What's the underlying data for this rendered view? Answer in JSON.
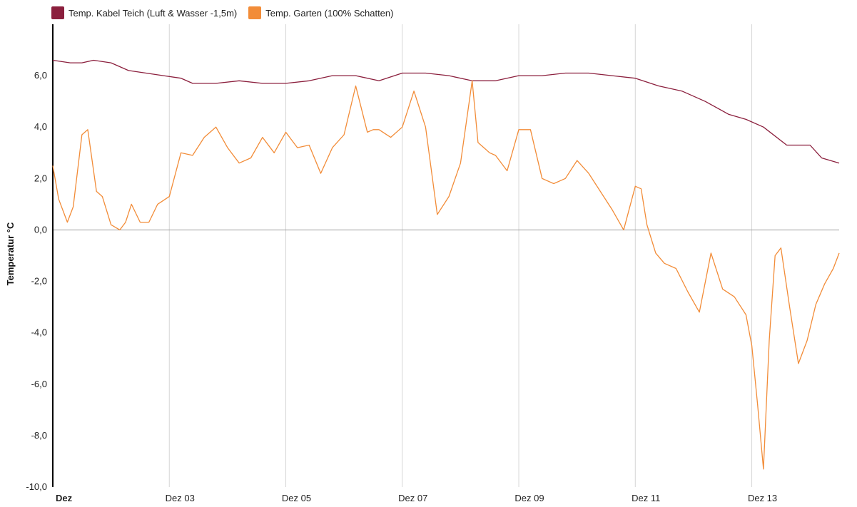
{
  "chart_data": {
    "type": "line",
    "ylabel": "Temperatur °C",
    "ylim": [
      -10,
      8
    ],
    "y_ticks": [
      "6,0",
      "4,0",
      "2,0",
      "0,0",
      "-2,0",
      "-4,0",
      "-6,0",
      "-8,0",
      "-10,0"
    ],
    "y_tick_values": [
      6,
      4,
      2,
      0,
      -2,
      -4,
      -6,
      -8,
      -10
    ],
    "x_ticks": [
      "Dez",
      "Dez 03",
      "Dez 05",
      "Dez 07",
      "Dez 09",
      "Dez 11",
      "Dez 13"
    ],
    "x_tick_values": [
      1,
      3,
      5,
      7,
      9,
      11,
      13
    ],
    "xlim": [
      1,
      14.5
    ],
    "grid": "vertical",
    "legend": "top-left",
    "series": [
      {
        "name": "Temp. Kabel Teich (Luft & Wasser -1,5m)",
        "color": "#8b1f3d",
        "x": [
          1.0,
          1.3,
          1.5,
          1.7,
          2.0,
          2.3,
          2.6,
          2.9,
          3.2,
          3.4,
          3.8,
          4.2,
          4.6,
          5.0,
          5.4,
          5.8,
          6.2,
          6.6,
          7.0,
          7.4,
          7.8,
          8.2,
          8.6,
          9.0,
          9.4,
          9.8,
          10.2,
          10.6,
          11.0,
          11.4,
          11.8,
          12.2,
          12.6,
          12.9,
          13.2,
          13.6,
          14.0,
          14.2,
          14.5
        ],
        "y": [
          6.6,
          6.5,
          6.5,
          6.6,
          6.5,
          6.2,
          6.1,
          6.0,
          5.9,
          5.7,
          5.7,
          5.8,
          5.7,
          5.7,
          5.8,
          6.0,
          6.0,
          5.8,
          6.1,
          6.1,
          6.0,
          5.8,
          5.8,
          6.0,
          6.0,
          6.1,
          6.1,
          6.0,
          5.9,
          5.6,
          5.4,
          5.0,
          4.5,
          4.3,
          4.0,
          3.3,
          3.3,
          2.8,
          2.6
        ]
      },
      {
        "name": "Temp. Garten (100% Schatten)",
        "color": "#f28c38",
        "x": [
          1.0,
          1.1,
          1.25,
          1.35,
          1.5,
          1.6,
          1.75,
          1.85,
          2.0,
          2.15,
          2.25,
          2.35,
          2.5,
          2.65,
          2.8,
          3.0,
          3.2,
          3.4,
          3.6,
          3.8,
          4.0,
          4.2,
          4.4,
          4.6,
          4.8,
          5.0,
          5.2,
          5.4,
          5.6,
          5.8,
          6.0,
          6.2,
          6.4,
          6.5,
          6.6,
          6.8,
          7.0,
          7.2,
          7.4,
          7.6,
          7.8,
          8.0,
          8.2,
          8.3,
          8.4,
          8.5,
          8.6,
          8.8,
          9.0,
          9.2,
          9.4,
          9.6,
          9.8,
          10.0,
          10.2,
          10.4,
          10.6,
          10.8,
          11.0,
          11.1,
          11.2,
          11.35,
          11.5,
          11.7,
          11.9,
          12.1,
          12.3,
          12.5,
          12.7,
          12.9,
          13.0,
          13.1,
          13.2,
          13.3,
          13.4,
          13.5,
          13.65,
          13.8,
          13.95,
          14.1,
          14.25,
          14.4,
          14.5
        ],
        "y": [
          2.5,
          1.2,
          0.3,
          0.9,
          3.7,
          3.9,
          1.5,
          1.3,
          0.2,
          0.0,
          0.3,
          1.0,
          0.3,
          0.3,
          1.0,
          1.3,
          3.0,
          2.9,
          3.6,
          4.0,
          3.2,
          2.6,
          2.8,
          3.6,
          3.0,
          3.8,
          3.2,
          3.3,
          2.2,
          3.2,
          3.7,
          5.6,
          3.8,
          3.9,
          3.9,
          3.6,
          4.0,
          5.4,
          4.0,
          0.6,
          1.3,
          2.6,
          5.8,
          3.4,
          3.2,
          3.0,
          2.9,
          2.3,
          3.9,
          3.9,
          2.0,
          1.8,
          2.0,
          2.7,
          2.2,
          1.5,
          0.8,
          0.0,
          1.7,
          1.6,
          0.2,
          -0.9,
          -1.3,
          -1.5,
          -2.4,
          -3.2,
          -0.9,
          -2.3,
          -2.6,
          -3.3,
          -4.5,
          -6.8,
          -9.3,
          -4.3,
          -1.0,
          -0.7,
          -3.0,
          -5.2,
          -4.3,
          -2.9,
          -2.1,
          -1.5,
          -0.9
        ]
      }
    ]
  }
}
